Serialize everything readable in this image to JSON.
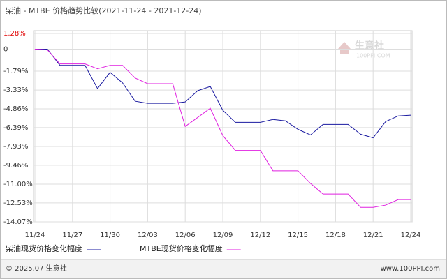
{
  "chart_data": {
    "type": "line",
    "title": "柴油 - MTBE 价格趋势比较(2021-11-24 - 2021-12-24)",
    "categories": [
      "11/24",
      null,
      null,
      "11/27",
      null,
      null,
      "11/30",
      null,
      null,
      "12/03",
      null,
      null,
      "12/06",
      null,
      null,
      "12/09",
      null,
      null,
      "12/12",
      null,
      null,
      "12/15",
      null,
      null,
      "12/18",
      null,
      null,
      "12/21",
      null,
      null,
      "12/24"
    ],
    "series": [
      {
        "name": "柴油现货价格变化幅度",
        "color": "#1a1aa0",
        "values": [
          0,
          0,
          -1.32,
          -1.32,
          -1.32,
          -3.21,
          -1.89,
          -2.75,
          -4.24,
          -4.41,
          -4.41,
          -4.41,
          -4.3,
          -3.38,
          -3.04,
          -4.98,
          -5.96,
          -5.96,
          -5.96,
          -5.73,
          -5.84,
          -6.53,
          -6.99,
          -6.13,
          -6.13,
          -6.13,
          -6.93,
          -7.22,
          -5.9,
          -5.44,
          -5.38
        ]
      },
      {
        "name": "MTBE现货价格变化幅度",
        "color": "#e020e0",
        "values": [
          0,
          -0.06,
          -1.2,
          -1.2,
          -1.2,
          -1.6,
          -1.32,
          -1.32,
          -2.35,
          -2.81,
          -2.81,
          -2.81,
          -6.3,
          -5.56,
          -4.81,
          -7.04,
          -8.25,
          -8.25,
          -8.25,
          -9.91,
          -9.91,
          -9.91,
          -10.94,
          -11.8,
          -11.8,
          -11.8,
          -12.89,
          -12.89,
          -12.71,
          -12.26,
          -12.26
        ]
      }
    ],
    "ylim": [
      -14.07,
      1.28
    ],
    "yticks": [
      {
        "value": 1.28,
        "label": "1.28%"
      },
      0,
      {
        "value": -1.79,
        "label": "-1.79%"
      },
      {
        "value": -3.33,
        "label": "-3.33%"
      },
      {
        "value": -4.86,
        "label": "-4.86%"
      },
      {
        "value": -6.39,
        "label": "-6.39%"
      },
      {
        "value": -7.93,
        "label": "-7.93%"
      },
      {
        "value": -9.46,
        "label": "-9.46%"
      },
      {
        "value": -11.0,
        "label": "-11.00%"
      },
      {
        "value": -12.53,
        "label": "-12.53%"
      },
      {
        "value": -14.07,
        "label": "-14.07%"
      }
    ],
    "grid": true,
    "watermark": {
      "name": "生意社",
      "site": "100PPI.COM"
    },
    "footer": {
      "copyright": "© 2025.07 生意社",
      "url": "www.100PPI.com"
    }
  }
}
